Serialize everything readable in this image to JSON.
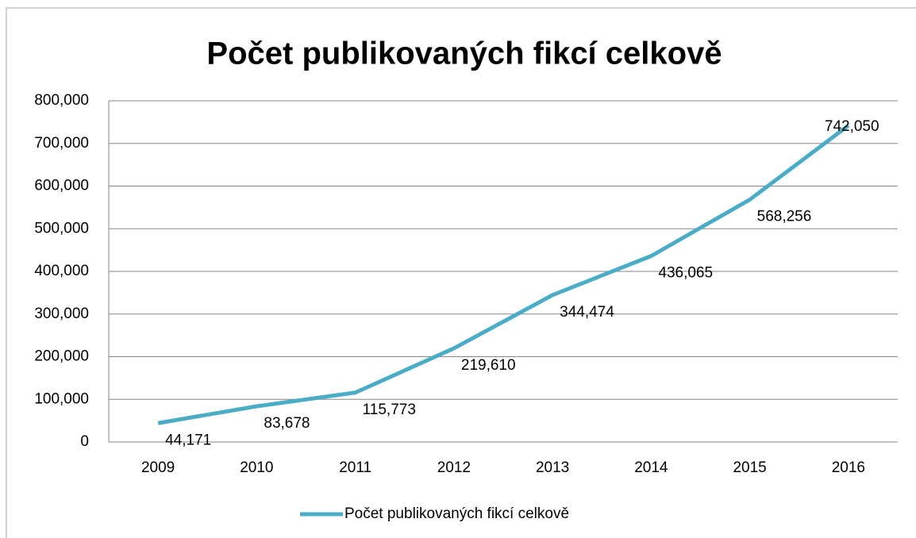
{
  "chart_data": {
    "type": "line",
    "title": "Počet publikovaných fikcí celkově",
    "categories": [
      "2009",
      "2010",
      "2011",
      "2012",
      "2013",
      "2014",
      "2015",
      "2016"
    ],
    "series": [
      {
        "name": "Počet publikovaných fikcí celkově",
        "color": "#4bacc6",
        "values": [
          44171,
          83678,
          115773,
          219610,
          344474,
          436065,
          568256,
          742050
        ],
        "value_labels": [
          "44,171",
          "83,678",
          "115,773",
          "219,610",
          "344,474",
          "436,065",
          "568,256",
          "742,050"
        ]
      }
    ],
    "ylim": [
      0,
      800000
    ],
    "yticks": [
      0,
      {
        "value": 100000,
        "label": "100,000"
      },
      {
        "value": 200000,
        "label": "200,000"
      },
      {
        "value": 300000,
        "label": "300,000"
      },
      {
        "value": 400000,
        "label": "400,000"
      },
      {
        "value": 500000,
        "label": "500,000"
      },
      {
        "value": 600000,
        "label": "600,000"
      },
      {
        "value": 700000,
        "label": "700,000"
      },
      {
        "value": 800000,
        "label": "800,000"
      }
    ],
    "grid": true,
    "legend": "bottom"
  }
}
